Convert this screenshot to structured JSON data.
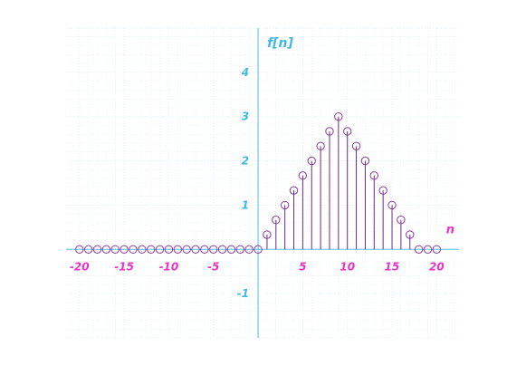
{
  "chart_data": {
    "type": "stem",
    "xlabel": "n",
    "ylabel": "f[n]",
    "xlim": [
      -21.5,
      22.5
    ],
    "ylim": [
      -2,
      5
    ],
    "x_ticks": [
      -20,
      -15,
      -10,
      -5,
      5,
      10,
      15,
      20
    ],
    "x_tick_labels": [
      "-20",
      "-15",
      "-10",
      "-5",
      "5",
      "10",
      "15",
      "20"
    ],
    "y_ticks": [
      -1,
      1,
      2,
      3,
      4
    ],
    "y_tick_labels": [
      "-1",
      "1",
      "2",
      "3",
      "4"
    ],
    "grid": true,
    "colors": {
      "axis": "#55bde0",
      "grid": "#d8eef6",
      "stem": "#6a2a86",
      "marker": "#8a3a9e",
      "x_tick_label": "#e834c8",
      "y_tick_label": "#43b7e3",
      "x_axis_label": "#e834c8",
      "y_axis_label": "#43b7e3"
    },
    "series": [
      {
        "x": [
          -20,
          -19,
          -18,
          -17,
          -16,
          -15,
          -14,
          -13,
          -12,
          -11,
          -10,
          -9,
          -8,
          -7,
          -6,
          -5,
          -4,
          -3,
          -2,
          -1,
          0,
          1,
          2,
          3,
          4,
          5,
          6,
          7,
          8,
          9,
          10,
          11,
          12,
          13,
          14,
          15,
          16,
          17,
          18,
          19,
          20
        ],
        "values": [
          0,
          0,
          0,
          0,
          0,
          0,
          0,
          0,
          0,
          0,
          0,
          0,
          0,
          0,
          0,
          0,
          0,
          0,
          0,
          0,
          0,
          0.333,
          0.667,
          1,
          1.333,
          1.667,
          2,
          2.333,
          2.667,
          3,
          2.667,
          2.333,
          2,
          1.667,
          1.333,
          1,
          0.667,
          0.333,
          0,
          0,
          0
        ]
      }
    ]
  }
}
